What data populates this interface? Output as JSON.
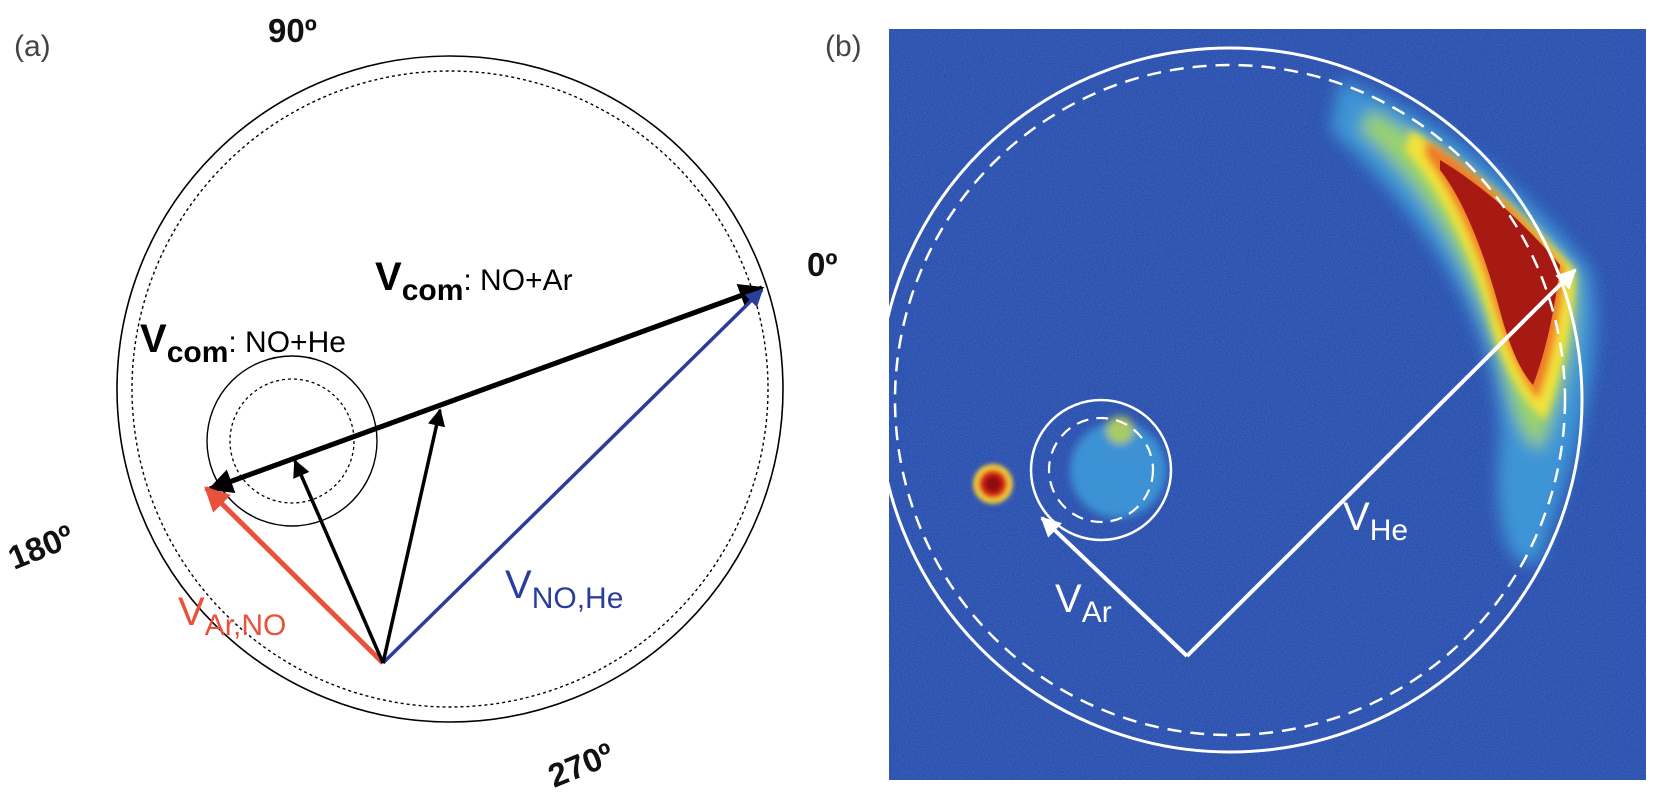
{
  "panel_a": {
    "label": "(a)",
    "angle_labels": {
      "deg90": "90º",
      "deg0": "0º",
      "deg180": "180º",
      "deg270": "270º"
    },
    "vectors": {
      "com_ar": {
        "symbol": "V",
        "sub": "com",
        "rest": ": NO+Ar",
        "color": "#000000"
      },
      "com_he": {
        "symbol": "V",
        "sub": "com",
        "rest": ": NO+He",
        "color": "#000000"
      },
      "no_he": {
        "symbol": "V",
        "sub": "NO,He",
        "color": "#2a3d9a"
      },
      "ar_no": {
        "symbol": "V",
        "sub": "Ar,NO",
        "color": "#e8513a"
      }
    }
  },
  "panel_b": {
    "label": "(b)",
    "background_color": "#1e3f9e",
    "vectors": {
      "he": {
        "symbol": "V",
        "sub": "He"
      },
      "ar": {
        "symbol": "V",
        "sub": "Ar"
      }
    }
  }
}
